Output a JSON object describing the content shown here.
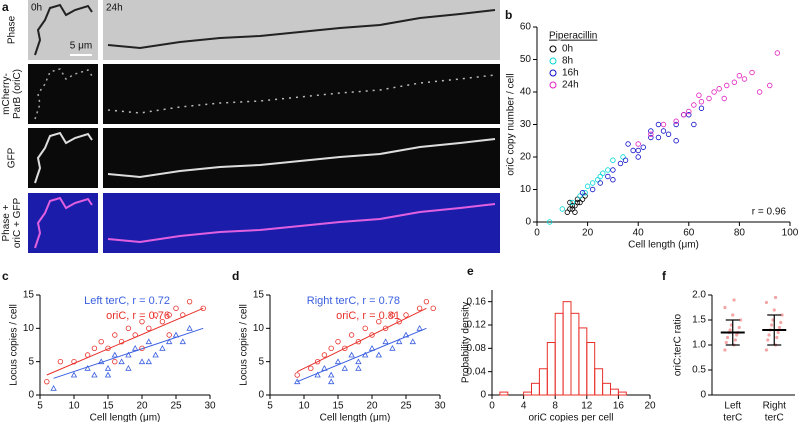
{
  "panels": {
    "a": {
      "letter": "a",
      "time_labels": [
        "0h",
        "24h"
      ],
      "scale_bar": "5 μm",
      "rows": [
        [
          "Phase"
        ],
        [
          "mCherry-",
          "ParB (oriC)"
        ],
        [
          "GFP"
        ],
        [
          "Phase +",
          "oriC + GFP"
        ]
      ]
    }
  },
  "chart_data": [
    {
      "type": "scatter",
      "letter": "b",
      "xlabel": "Cell length (μm)",
      "ylabel": "oriC copy number / cell",
      "xlim": [
        0,
        100
      ],
      "xticks": [
        0,
        20,
        40,
        60,
        80,
        100
      ],
      "ylim": [
        0,
        60
      ],
      "yticks": [
        0,
        10,
        20,
        30,
        40,
        50,
        60
      ],
      "legend_title": "Piperacillin",
      "annotation": "r = 0.96",
      "series": [
        {
          "name": "0h",
          "color": "#000000",
          "marker": "circle",
          "x": [
            12,
            13,
            14,
            15,
            16,
            17,
            18,
            14,
            13,
            15,
            19,
            16
          ],
          "values": [
            3,
            4,
            5,
            5,
            6,
            6,
            7,
            4,
            6,
            3,
            8,
            7
          ]
        },
        {
          "name": "8h",
          "color": "#00d8d8",
          "marker": "circle",
          "x": [
            5,
            10,
            14,
            17,
            20,
            22,
            25,
            28,
            30,
            26,
            24,
            19,
            34
          ],
          "values": [
            0,
            4,
            6,
            8,
            11,
            12,
            14,
            16,
            19,
            15,
            13,
            9,
            20
          ]
        },
        {
          "name": "16h",
          "color": "#1010c8",
          "marker": "circle",
          "x": [
            18,
            22,
            25,
            28,
            30,
            33,
            35,
            38,
            40,
            42,
            45,
            48,
            50,
            52,
            55,
            58,
            60,
            62,
            65,
            45,
            40,
            36,
            30,
            55,
            48
          ],
          "values": [
            9,
            10,
            12,
            14,
            16,
            18,
            19,
            22,
            22,
            23,
            26,
            26,
            28,
            27,
            30,
            33,
            33,
            30,
            35,
            28,
            20,
            24,
            13,
            25,
            30
          ]
        },
        {
          "name": "24h",
          "color": "#e020c0",
          "marker": "circle",
          "x": [
            40,
            45,
            50,
            55,
            58,
            60,
            62,
            65,
            68,
            70,
            72,
            75,
            78,
            80,
            82,
            85,
            88,
            92,
            95,
            64,
            74
          ],
          "values": [
            24,
            27,
            30,
            31,
            33,
            34,
            36,
            37,
            38,
            40,
            41,
            42,
            43,
            45,
            44,
            46,
            40,
            42,
            52,
            39,
            38
          ]
        }
      ]
    },
    {
      "type": "scatter",
      "letter": "c",
      "xlabel": "Cell length (μm)",
      "ylabel": "Locus copies / cell",
      "xlim": [
        5,
        30
      ],
      "xticks": [
        5,
        10,
        15,
        20,
        25,
        30
      ],
      "ylim": [
        0,
        15
      ],
      "yticks": [
        0,
        5,
        10,
        15
      ],
      "series": [
        {
          "name": "Left terC, r = 0.72",
          "color": "#3a5fe0",
          "marker": "triangle",
          "x": [
            7,
            10,
            12,
            13,
            14,
            15,
            16,
            17,
            18,
            19,
            20,
            21,
            22,
            23,
            24,
            25,
            26,
            27,
            15,
            18,
            21
          ],
          "values": [
            1,
            3,
            4,
            3,
            5,
            4,
            6,
            5,
            6,
            7,
            5,
            8,
            6,
            7,
            8,
            9,
            8,
            10,
            3,
            4,
            5
          ],
          "fit": {
            "x": [
              7,
              29
            ],
            "y": [
              2.5,
              10
            ]
          }
        },
        {
          "name": "oriC, r = 0.76",
          "color": "#e8302a",
          "marker": "circle",
          "x": [
            6,
            8,
            10,
            12,
            13,
            14,
            15,
            16,
            17,
            18,
            19,
            20,
            21,
            22,
            23,
            24,
            25,
            26,
            27,
            29,
            16,
            20,
            24
          ],
          "values": [
            2,
            5,
            5,
            6,
            7,
            8,
            7,
            9,
            8,
            10,
            9,
            11,
            10,
            12,
            11,
            12,
            13,
            12,
            14,
            13,
            5,
            7,
            9
          ],
          "fit": {
            "x": [
              6,
              29
            ],
            "y": [
              3,
              13
            ]
          }
        }
      ]
    },
    {
      "type": "scatter",
      "letter": "d",
      "xlabel": "Cell length (μm)",
      "ylabel": "Locus copies / cell",
      "xlim": [
        5,
        30
      ],
      "xticks": [
        5,
        10,
        15,
        20,
        25,
        30
      ],
      "ylim": [
        0,
        15
      ],
      "yticks": [
        0,
        5,
        10,
        15
      ],
      "series": [
        {
          "name": "Right terC, r = 0.78",
          "color": "#3a5fe0",
          "marker": "triangle",
          "x": [
            9,
            12,
            13,
            14,
            15,
            16,
            17,
            18,
            19,
            20,
            21,
            22,
            23,
            24,
            25,
            26,
            27,
            14,
            18
          ],
          "values": [
            2,
            3,
            4,
            3,
            5,
            4,
            6,
            5,
            6,
            7,
            6,
            8,
            7,
            8,
            9,
            8,
            10,
            2,
            4
          ],
          "fit": {
            "x": [
              9,
              28
            ],
            "y": [
              2,
              10
            ]
          }
        },
        {
          "name": "oriC, r = 0.81",
          "color": "#e8302a",
          "marker": "circle",
          "x": [
            9,
            11,
            12,
            13,
            14,
            15,
            16,
            17,
            18,
            19,
            20,
            21,
            22,
            23,
            24,
            25,
            27,
            28,
            29
          ],
          "values": [
            3,
            4,
            5,
            6,
            7,
            8,
            7,
            9,
            8,
            10,
            9,
            11,
            10,
            12,
            11,
            12,
            13,
            14,
            13
          ],
          "fit": {
            "x": [
              9,
              28
            ],
            "y": [
              3.5,
              13
            ]
          }
        }
      ]
    },
    {
      "type": "histogram",
      "letter": "e",
      "xlabel": "oriC copies per cell",
      "ylabel": "Probability density",
      "color": "#e8302a",
      "bins": [
        0,
        1,
        2,
        3,
        4,
        5,
        6,
        7,
        8,
        9,
        10,
        11,
        12,
        13,
        14,
        15,
        16,
        17,
        18,
        19,
        20
      ],
      "values": [
        0,
        0.005,
        0,
        0,
        0.005,
        0.02,
        0.045,
        0.09,
        0.14,
        0.16,
        0.14,
        0.115,
        0.09,
        0.045,
        0.02,
        0.01,
        0.005,
        0,
        0,
        0
      ],
      "xlim": [
        0,
        20
      ],
      "xticks": [
        0,
        4,
        8,
        12,
        16,
        20
      ],
      "ylim": [
        0,
        0.18
      ],
      "yticks": [
        0,
        0.04,
        0.08,
        0.12,
        0.16
      ]
    },
    {
      "type": "dotplot",
      "letter": "f",
      "ylabel": "oriC:terC ratio",
      "color": "#f08080",
      "categories": [
        [
          "Left",
          "terC"
        ],
        [
          "Right",
          "terC"
        ]
      ],
      "points": [
        [
          0.9,
          1.0,
          1.05,
          1.1,
          1.15,
          1.2,
          1.25,
          1.25,
          1.3,
          1.35,
          1.4,
          1.5,
          1.6,
          1.75,
          1.9
        ],
        [
          0.9,
          1.0,
          1.1,
          1.15,
          1.2,
          1.25,
          1.3,
          1.35,
          1.4,
          1.45,
          1.5,
          1.6,
          1.7,
          1.85,
          1.95
        ]
      ],
      "values": [
        1.25,
        1.3
      ],
      "sd": [
        0.25,
        0.3
      ],
      "ylim": [
        0,
        2
      ],
      "yticks": [
        0,
        0.5,
        {
          "value": 1,
          "label": "1.0"
        },
        1.5,
        {
          "value": 2,
          "label": "2.0"
        }
      ]
    }
  ]
}
